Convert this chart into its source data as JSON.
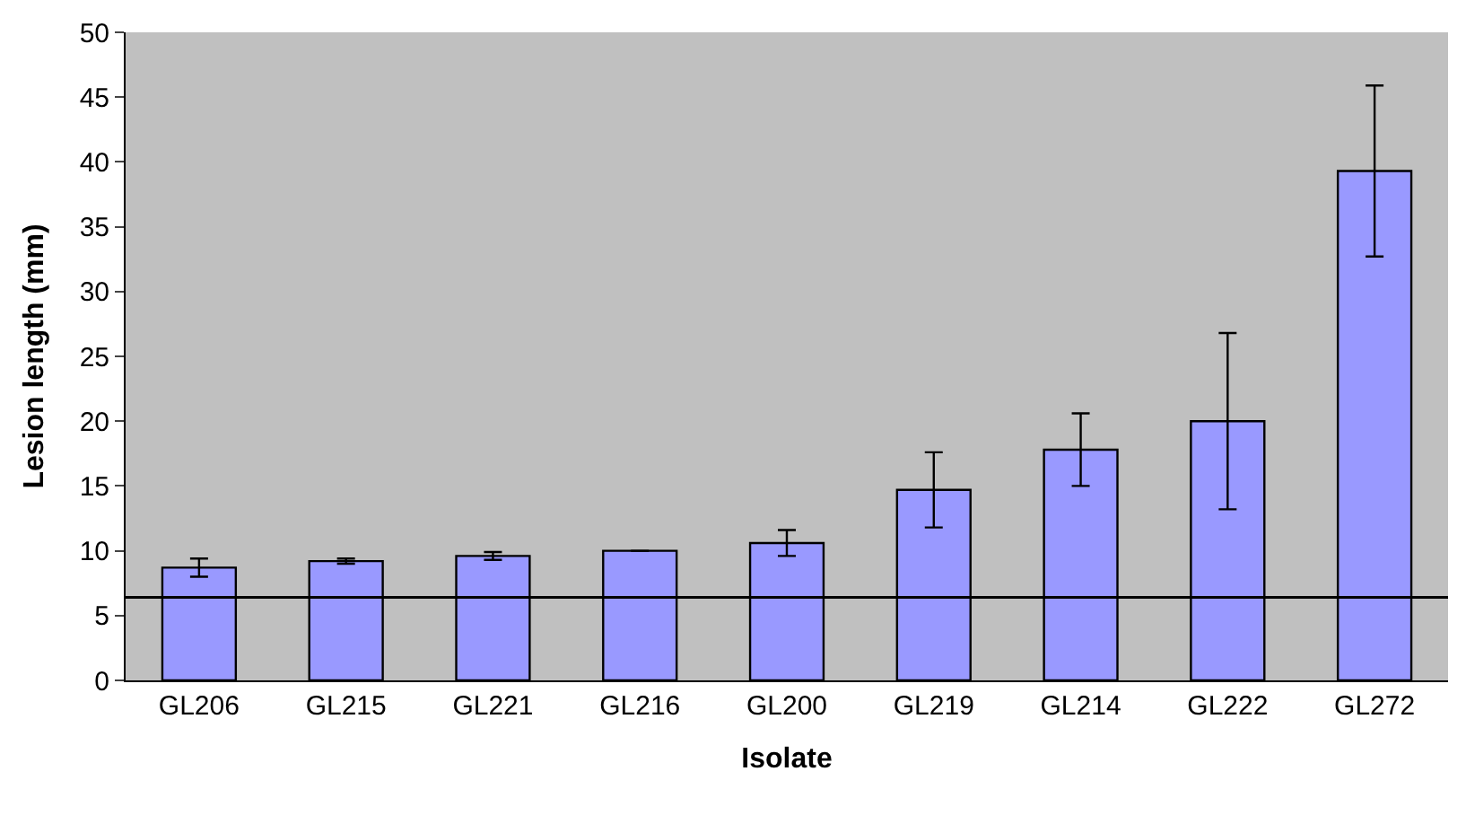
{
  "chart_data": {
    "type": "bar",
    "xlabel": "Isolate",
    "ylabel": "Lesion length (mm)",
    "categories": [
      "GL206",
      "GL215",
      "GL221",
      "GL216",
      "GL200",
      "GL219",
      "GL214",
      "GL222",
      "GL272"
    ],
    "values": [
      8.7,
      9.2,
      9.6,
      10.0,
      10.6,
      14.7,
      17.8,
      20.0,
      39.3
    ],
    "errors": [
      0.7,
      0.2,
      0.3,
      null,
      1.0,
      2.9,
      2.8,
      6.8,
      6.6
    ],
    "color": "#9999ff",
    "ylim": [
      0,
      50
    ],
    "yticks": [
      0,
      5,
      10,
      15,
      20,
      25,
      30,
      35,
      40,
      45,
      50
    ],
    "ref_lines": [
      {
        "axis": "y",
        "value": 6.4,
        "color": "#000000",
        "line_style": "solid"
      }
    ],
    "grid": false
  }
}
